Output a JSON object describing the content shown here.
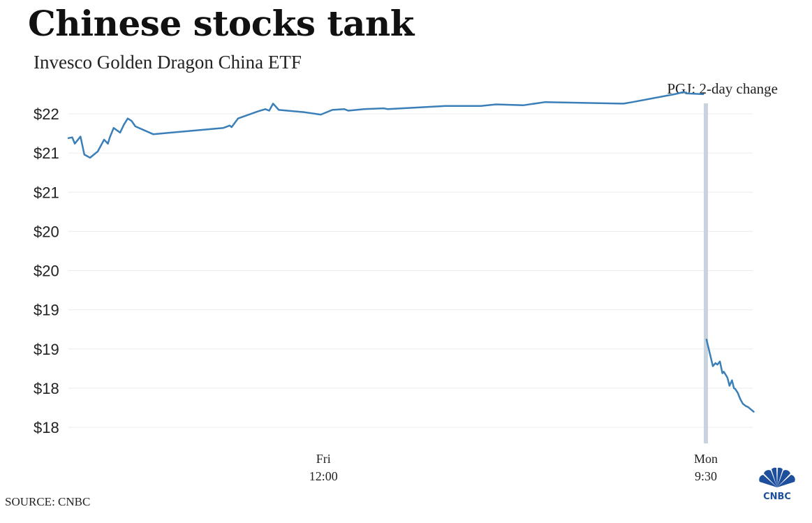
{
  "title": "Chinese stocks tank",
  "subtitle": "Invesco Golden Dragon China ETF",
  "source": "SOURCE: CNBC",
  "logo_text": "CNBC",
  "colors": {
    "line": "#3a7fb8",
    "marker": "#c9d3de",
    "grid": "#ececec",
    "text": "#222222"
  },
  "chart_data": {
    "type": "line",
    "title": "Chinese stocks tank",
    "subtitle": "Invesco Golden Dragon China ETF",
    "ylabel": "",
    "xlabel": "",
    "y_ticks": [
      "$22",
      "$21",
      "$21",
      "$20",
      "$20",
      "$19",
      "$19",
      "$18",
      "$18"
    ],
    "y_tick_values": [
      22.0,
      21.5,
      21.0,
      20.5,
      20.0,
      19.5,
      19.0,
      18.5,
      18.0
    ],
    "ylim": [
      18.0,
      22.0
    ],
    "x_ticks": [
      {
        "line1": "Fri",
        "line2": "12:00",
        "x": 0.4
      },
      {
        "line1": "Mon",
        "line2": "9:30",
        "x": 1.0
      }
    ],
    "annotation": {
      "label": "PGJ: 2-day change",
      "x": 1.0
    },
    "grid": true,
    "series": [
      {
        "x": [
          0.0,
          0.006,
          0.01,
          0.019,
          0.025,
          0.034,
          0.046,
          0.056,
          0.062,
          0.065,
          0.071,
          0.081,
          0.087,
          0.093,
          0.099,
          0.105,
          0.133,
          0.243,
          0.253,
          0.256,
          0.266,
          0.297,
          0.309,
          0.315,
          0.321,
          0.33,
          0.371,
          0.396,
          0.414,
          0.433,
          0.439,
          0.464,
          0.495,
          0.501,
          0.59,
          0.647,
          0.671,
          0.714,
          0.748,
          0.871,
          0.885,
          0.951,
          0.966,
          0.969,
          0.996
        ],
        "values": [
          21.69,
          21.7,
          21.62,
          21.71,
          21.48,
          21.44,
          21.52,
          21.67,
          21.62,
          21.7,
          21.82,
          21.76,
          21.86,
          21.94,
          21.91,
          21.84,
          21.74,
          21.82,
          21.85,
          21.83,
          21.94,
          22.03,
          22.06,
          22.04,
          22.13,
          22.05,
          22.02,
          21.99,
          22.05,
          22.06,
          22.04,
          22.06,
          22.07,
          22.06,
          22.1,
          22.1,
          22.12,
          22.11,
          22.15,
          22.13,
          22.15,
          22.25,
          22.28,
          22.26,
          22.25
        ]
      },
      {
        "x": [
          1.001,
          1.006,
          1.011,
          1.015,
          1.018,
          1.022,
          1.026,
          1.028,
          1.032,
          1.034,
          1.037,
          1.041,
          1.044,
          1.046,
          1.05,
          1.054,
          1.058,
          1.063,
          1.066,
          1.069,
          1.072,
          1.075
        ],
        "values": [
          19.12,
          18.95,
          18.78,
          18.82,
          18.8,
          18.84,
          18.69,
          18.71,
          18.66,
          18.63,
          18.53,
          18.6,
          18.5,
          18.49,
          18.44,
          18.36,
          18.3,
          18.27,
          18.26,
          18.24,
          18.22,
          18.2
        ]
      }
    ]
  }
}
